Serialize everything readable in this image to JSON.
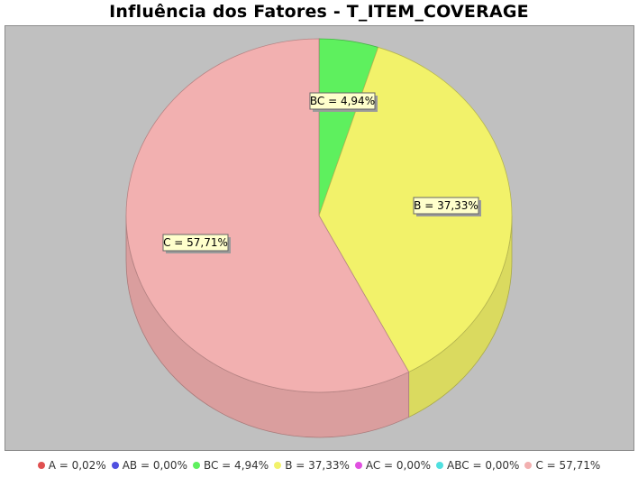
{
  "title": "Influência dos Fatores - T_ITEM_COVERAGE",
  "chart_data": {
    "type": "pie",
    "title": "Influência dos Fatores - T_ITEM_COVERAGE",
    "slices": [
      {
        "label": "A",
        "value": 0.02,
        "display": "0,02%",
        "color": "#e05050"
      },
      {
        "label": "AB",
        "value": 0.0,
        "display": "0,00%",
        "color": "#5050e0"
      },
      {
        "label": "BC",
        "value": 4.94,
        "display": "4,94%",
        "color": "#5ef05e"
      },
      {
        "label": "B",
        "value": 37.33,
        "display": "37,33%",
        "color": "#f2f26a"
      },
      {
        "label": "AC",
        "value": 0.0,
        "display": "0,00%",
        "color": "#e050e0"
      },
      {
        "label": "ABC",
        "value": 0.0,
        "display": "0,00%",
        "color": "#50e0e0"
      },
      {
        "label": "C",
        "value": 57.71,
        "display": "57,71%",
        "color": "#f2b0b0"
      }
    ],
    "data_labels": [
      "BC = 4,94%",
      "B = 37,33%",
      "C = 57,71%"
    ],
    "legend": [
      "A = 0,02%",
      "AB = 0,00%",
      "BC = 4,94%",
      "B = 37,33%",
      "AC = 0,00%",
      "ABC = 0,00%",
      "C = 57,71%"
    ],
    "legend_position": "bottom",
    "three_d": true
  },
  "colors": {
    "plot_background": "#c0c0c0",
    "label_background": "#ffffcc"
  }
}
